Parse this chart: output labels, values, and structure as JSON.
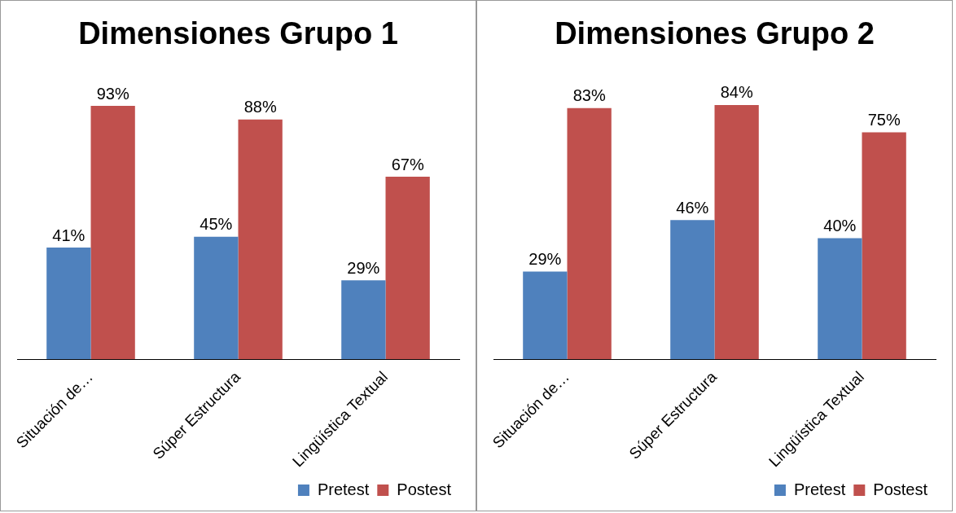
{
  "chart_data": [
    {
      "type": "bar",
      "title": "Dimensiones Grupo 1",
      "categories": [
        "Situación de…",
        "Súper Estructura",
        "Lingüística Textual"
      ],
      "series": [
        {
          "name": "Pretest",
          "color": "#4f81bd",
          "values": [
            41,
            45,
            29
          ],
          "value_labels": [
            "41%",
            "45%",
            "29%"
          ]
        },
        {
          "name": "Postest",
          "color": "#c0504d",
          "values": [
            93,
            88,
            67
          ],
          "value_labels": [
            "93%",
            "88%",
            "67%"
          ]
        }
      ],
      "legend": "bottom right",
      "grid": false
    },
    {
      "type": "bar",
      "title": "Dimensiones Grupo 2",
      "categories": [
        "Situación de…",
        "Súper Estructura",
        "Lingüística Textual"
      ],
      "series": [
        {
          "name": "Pretest",
          "color": "#4f81bd",
          "values": [
            29,
            46,
            40
          ],
          "value_labels": [
            "29%",
            "46%",
            "40%"
          ]
        },
        {
          "name": "Postest",
          "color": "#c0504d",
          "values": [
            83,
            84,
            75
          ],
          "value_labels": [
            "83%",
            "84%",
            "75%"
          ]
        }
      ],
      "legend": "bottom right",
      "grid": false
    }
  ]
}
